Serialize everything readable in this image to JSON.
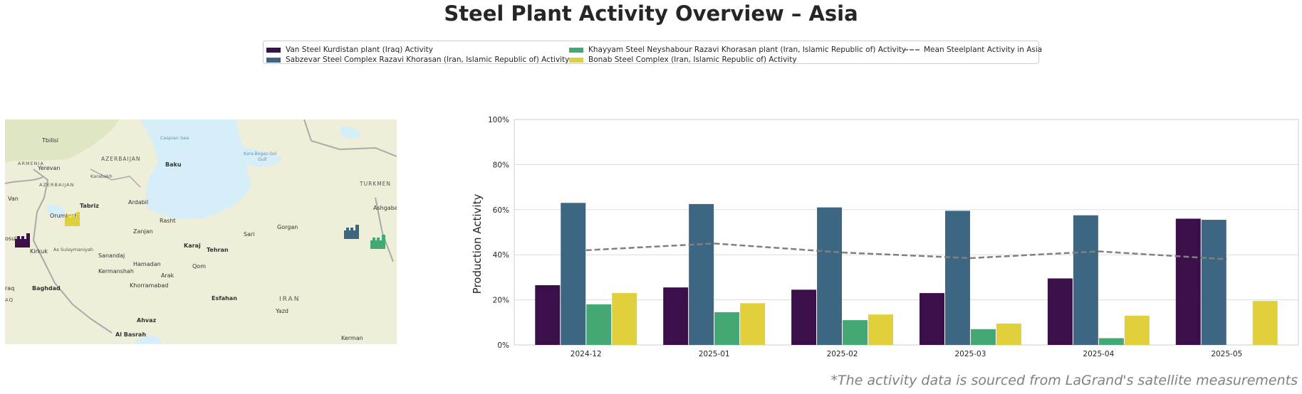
{
  "title": "Steel Plant Activity Overview – Asia",
  "footnote": "*The activity data is sourced from LaGrand's satellite measurements",
  "legend": {
    "van": "Van Steel Kurdistan plant (Iraq) Activity",
    "sabzevar": "Sabzevar Steel Complex Razavi Khorasan (Iran, Islamic Republic of) Activity",
    "khayyam": "Khayyam Steel Neyshabour Razavi Khorasan plant (Iran, Islamic Republic of) Activity",
    "bonab": "Bonab Steel Complex (Iran, Islamic Republic of) Activity",
    "mean": "Mean Steelplant Activity in Asia"
  },
  "colors": {
    "van": "#3b0f4a",
    "sabzevar": "#3c6682",
    "khayyam": "#44a875",
    "bonab": "#e0d03c",
    "mean": "#808080"
  },
  "map": {
    "labels": {
      "tbilisi": "Tbilisi",
      "azerbaijan": "AZERBAIJAN",
      "baku": "Baku",
      "armenia": "ARMENIA",
      "yerevan": "Yerevan",
      "karabakh": "Karabakh",
      "azerbaijan2": "AZERBAIJAN",
      "caspian": "Caspian Sea",
      "karabogaz": "Kara-Bogaz-Gol",
      "gulf": "Gulf",
      "turkmen": "TURKMEN",
      "ashgabat": "Ashgabat",
      "van": "Van",
      "tabriz": "Tabriz",
      "ardabil": "Ardabil",
      "orumiyeh": "Orumiyeh",
      "rasht": "Rasht",
      "zanjan": "Zanjan",
      "sari": "Sari",
      "gorgan": "Gorgan",
      "mosul": "osul",
      "kirkuk": "Kirkuk",
      "sulaymaniyah": "As Sulaymaniyah",
      "karaj": "Karaj",
      "tehran": "Tehran",
      "sanandaj": "Sanandaj",
      "hamadan": "Hamadan",
      "qom": "Qom",
      "kermanshah": "Kermanshah",
      "arak": "Arak",
      "khorramabad": "Khorramabad",
      "baghdad": "Baghdad",
      "araq": "raq",
      "iraq": "AQ",
      "esfahan": "Esfahan",
      "iran": "IRAN",
      "yazd": "Yazd",
      "ahvaz": "Ahvaz",
      "basrah": "Al Basrah",
      "kerman": "Kerman"
    }
  },
  "chart_data": {
    "type": "bar",
    "categories": [
      "2024-12",
      "2025-01",
      "2025-02",
      "2025-03",
      "2025-04",
      "2025-05"
    ],
    "series": [
      {
        "name": "Van Steel Kurdistan plant (Iraq) Activity",
        "key": "van",
        "values": [
          26.5,
          25.5,
          24.5,
          23,
          29.5,
          56
        ]
      },
      {
        "name": "Sabzevar Steel Complex Razavi Khorasan (Iran, Islamic Republic of) Activity",
        "key": "sabzevar",
        "values": [
          63,
          62.5,
          61,
          59.5,
          57.5,
          55.5
        ]
      },
      {
        "name": "Khayyam Steel Neyshabour Razavi Khorasan plant (Iran, Islamic Republic of) Activity",
        "key": "khayyam",
        "values": [
          18,
          14.5,
          11,
          7,
          3,
          null
        ]
      },
      {
        "name": "Bonab Steel Complex (Iran, Islamic Republic of) Activity",
        "key": "bonab",
        "values": [
          23,
          18.5,
          13.5,
          9.5,
          13,
          19.5
        ]
      }
    ],
    "mean_line": {
      "name": "Mean Steelplant Activity in Asia",
      "values": [
        42,
        45,
        41,
        38.5,
        41.5,
        38
      ]
    },
    "ylabel": "Production Activity",
    "xlabel": "",
    "ylim": [
      0,
      100
    ],
    "yticks": [
      0,
      20,
      40,
      60,
      80,
      100
    ],
    "ytick_labels": [
      "0%",
      "20%",
      "40%",
      "60%",
      "80%",
      "100%"
    ],
    "grid": true,
    "legend_position": "top-center"
  }
}
